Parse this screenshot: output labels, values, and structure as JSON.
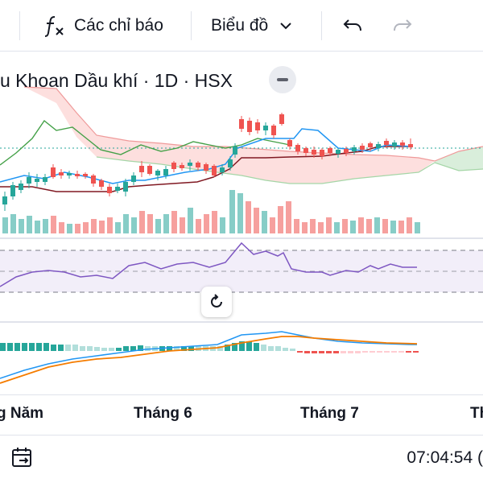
{
  "toolbar": {
    "indicators_label": "Các chỉ báo",
    "chart_type_label": "Biểu đồ"
  },
  "legend": {
    "symbol_text": "u Khoan Dầu khí · 1D · HSX"
  },
  "time_axis": {
    "labels": [
      "g Năm",
      "Tháng 6",
      "Tháng 7",
      "Th"
    ]
  },
  "bottom_bar": {
    "clock": "07:04:54 ("
  },
  "colors": {
    "up": "#26a69a",
    "down": "#ef5350",
    "cloud_red": "#fdd9d8",
    "cloud_green": "#d5ecd7",
    "rsi": "#7e57c2",
    "macd_line": "#2196f3",
    "signal_line": "#f57c00",
    "base_line": "#801922",
    "conversion_line": "#2196f3",
    "lagging_line": "#43a047"
  },
  "icons": {
    "indicators": "function-icon",
    "chart_type": "chevron-down-icon",
    "undo": "undo-icon",
    "redo": "redo-icon",
    "collapse": "minus-icon",
    "reset": "rotate-icon",
    "calendar": "calendar-goto-icon"
  }
}
